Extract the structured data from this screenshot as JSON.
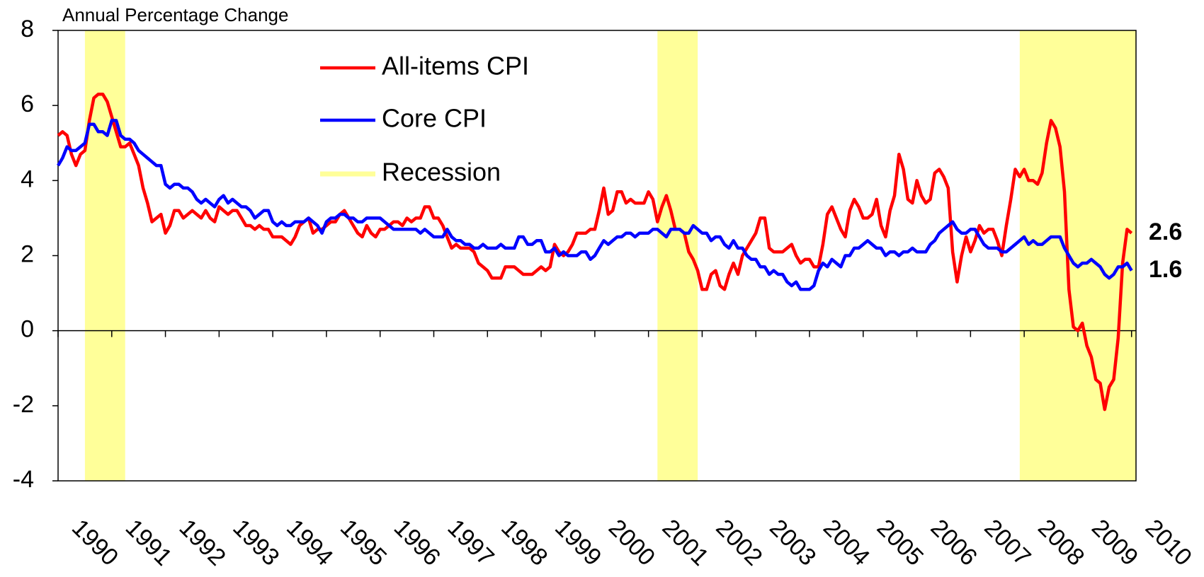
{
  "chart_data": {
    "type": "line",
    "title": "Annual Percentage Change",
    "x": [
      1990,
      1990.083,
      1990.167,
      1990.25,
      1990.333,
      1990.417,
      1990.5,
      1990.583,
      1990.667,
      1990.75,
      1990.833,
      1990.917,
      1991,
      1991.083,
      1991.167,
      1991.25,
      1991.333,
      1991.417,
      1991.5,
      1991.583,
      1991.667,
      1991.75,
      1991.833,
      1991.917,
      1992,
      1992.083,
      1992.167,
      1992.25,
      1992.333,
      1992.417,
      1992.5,
      1992.583,
      1992.667,
      1992.75,
      1992.833,
      1992.917,
      1993,
      1993.083,
      1993.167,
      1993.25,
      1993.333,
      1993.417,
      1993.5,
      1993.583,
      1993.667,
      1993.75,
      1993.833,
      1993.917,
      1994,
      1994.083,
      1994.167,
      1994.25,
      1994.333,
      1994.417,
      1994.5,
      1994.583,
      1994.667,
      1994.75,
      1994.833,
      1994.917,
      1995,
      1995.083,
      1995.167,
      1995.25,
      1995.333,
      1995.417,
      1995.5,
      1995.583,
      1995.667,
      1995.75,
      1995.833,
      1995.917,
      1996,
      1996.083,
      1996.167,
      1996.25,
      1996.333,
      1996.417,
      1996.5,
      1996.583,
      1996.667,
      1996.75,
      1996.833,
      1996.917,
      1997,
      1997.083,
      1997.167,
      1997.25,
      1997.333,
      1997.417,
      1997.5,
      1997.583,
      1997.667,
      1997.75,
      1997.833,
      1997.917,
      1998,
      1998.083,
      1998.167,
      1998.25,
      1998.333,
      1998.417,
      1998.5,
      1998.583,
      1998.667,
      1998.75,
      1998.833,
      1998.917,
      1999,
      1999.083,
      1999.167,
      1999.25,
      1999.333,
      1999.417,
      1999.5,
      1999.583,
      1999.667,
      1999.75,
      1999.833,
      1999.917,
      2000,
      2000.083,
      2000.167,
      2000.25,
      2000.333,
      2000.417,
      2000.5,
      2000.583,
      2000.667,
      2000.75,
      2000.833,
      2000.917,
      2001,
      2001.083,
      2001.167,
      2001.25,
      2001.333,
      2001.417,
      2001.5,
      2001.583,
      2001.667,
      2001.75,
      2001.833,
      2001.917,
      2002,
      2002.083,
      2002.167,
      2002.25,
      2002.333,
      2002.417,
      2002.5,
      2002.583,
      2002.667,
      2002.75,
      2002.833,
      2002.917,
      2003,
      2003.083,
      2003.167,
      2003.25,
      2003.333,
      2003.417,
      2003.5,
      2003.583,
      2003.667,
      2003.75,
      2003.833,
      2003.917,
      2004,
      2004.083,
      2004.167,
      2004.25,
      2004.333,
      2004.417,
      2004.5,
      2004.583,
      2004.667,
      2004.75,
      2004.833,
      2004.917,
      2005,
      2005.083,
      2005.167,
      2005.25,
      2005.333,
      2005.417,
      2005.5,
      2005.583,
      2005.667,
      2005.75,
      2005.833,
      2005.917,
      2006,
      2006.083,
      2006.167,
      2006.25,
      2006.333,
      2006.417,
      2006.5,
      2006.583,
      2006.667,
      2006.75,
      2006.833,
      2006.917,
      2007,
      2007.083,
      2007.167,
      2007.25,
      2007.333,
      2007.417,
      2007.5,
      2007.583,
      2007.667,
      2007.75,
      2007.833,
      2007.917,
      2008,
      2008.083,
      2008.167,
      2008.25,
      2008.333,
      2008.417,
      2008.5,
      2008.583,
      2008.667,
      2008.75,
      2008.833,
      2008.917,
      2009,
      2009.083,
      2009.167,
      2009.25,
      2009.333,
      2009.417,
      2009.5,
      2009.583,
      2009.667,
      2009.75,
      2009.833,
      2009.917,
      2010
    ],
    "series": [
      {
        "name": "All-items CPI",
        "color": "#ff0000",
        "values": [
          5.2,
          5.3,
          5.2,
          4.7,
          4.4,
          4.7,
          4.8,
          5.6,
          6.2,
          6.3,
          6.3,
          6.1,
          5.7,
          5.3,
          4.9,
          4.9,
          5.0,
          4.7,
          4.4,
          3.8,
          3.4,
          2.9,
          3.0,
          3.1,
          2.6,
          2.8,
          3.2,
          3.2,
          3.0,
          3.1,
          3.2,
          3.1,
          3.0,
          3.2,
          3.0,
          2.9,
          3.3,
          3.2,
          3.1,
          3.2,
          3.2,
          3.0,
          2.8,
          2.8,
          2.7,
          2.8,
          2.7,
          2.7,
          2.5,
          2.5,
          2.5,
          2.4,
          2.3,
          2.5,
          2.8,
          2.9,
          3.0,
          2.6,
          2.7,
          2.7,
          2.8,
          2.9,
          2.9,
          3.1,
          3.2,
          3.0,
          2.8,
          2.6,
          2.5,
          2.8,
          2.6,
          2.5,
          2.7,
          2.7,
          2.8,
          2.9,
          2.9,
          2.8,
          3.0,
          2.9,
          3.0,
          3.0,
          3.3,
          3.3,
          3.0,
          3.0,
          2.8,
          2.5,
          2.2,
          2.3,
          2.2,
          2.2,
          2.2,
          2.1,
          1.8,
          1.7,
          1.6,
          1.4,
          1.4,
          1.4,
          1.7,
          1.7,
          1.7,
          1.6,
          1.5,
          1.5,
          1.5,
          1.6,
          1.7,
          1.6,
          1.7,
          2.3,
          2.1,
          2.0,
          2.1,
          2.3,
          2.6,
          2.6,
          2.6,
          2.7,
          2.7,
          3.2,
          3.8,
          3.1,
          3.2,
          3.7,
          3.7,
          3.4,
          3.5,
          3.4,
          3.4,
          3.4,
          3.7,
          3.5,
          2.9,
          3.3,
          3.6,
          3.2,
          2.7,
          2.7,
          2.6,
          2.1,
          1.9,
          1.6,
          1.1,
          1.1,
          1.5,
          1.6,
          1.2,
          1.1,
          1.5,
          1.8,
          1.5,
          2.0,
          2.2,
          2.4,
          2.6,
          3.0,
          3.0,
          2.2,
          2.1,
          2.1,
          2.1,
          2.2,
          2.3,
          2.0,
          1.8,
          1.9,
          1.9,
          1.7,
          1.7,
          2.3,
          3.1,
          3.3,
          3.0,
          2.7,
          2.5,
          3.2,
          3.5,
          3.3,
          3.0,
          3.0,
          3.1,
          3.5,
          2.8,
          2.5,
          3.2,
          3.6,
          4.7,
          4.3,
          3.5,
          3.4,
          4.0,
          3.6,
          3.4,
          3.5,
          4.2,
          4.3,
          4.1,
          3.8,
          2.1,
          1.3,
          2.0,
          2.5,
          2.1,
          2.4,
          2.8,
          2.6,
          2.7,
          2.7,
          2.4,
          2.0,
          2.8,
          3.5,
          4.3,
          4.1,
          4.3,
          4.0,
          4.0,
          3.9,
          4.2,
          5.0,
          5.6,
          5.4,
          4.9,
          3.7,
          1.1,
          0.1,
          0.0,
          0.2,
          -0.4,
          -0.7,
          -1.3,
          -1.4,
          -2.1,
          -1.5,
          -1.3,
          -0.2,
          1.8,
          2.7,
          2.6
        ]
      },
      {
        "name": "Core CPI",
        "color": "#0000ff",
        "values": [
          4.4,
          4.6,
          4.9,
          4.8,
          4.8,
          4.9,
          5.0,
          5.5,
          5.5,
          5.3,
          5.3,
          5.2,
          5.6,
          5.6,
          5.2,
          5.1,
          5.1,
          5.0,
          4.8,
          4.7,
          4.6,
          4.5,
          4.4,
          4.4,
          3.9,
          3.8,
          3.9,
          3.9,
          3.8,
          3.8,
          3.7,
          3.5,
          3.4,
          3.5,
          3.4,
          3.3,
          3.5,
          3.6,
          3.4,
          3.5,
          3.4,
          3.3,
          3.3,
          3.2,
          3.0,
          3.1,
          3.2,
          3.2,
          2.9,
          2.8,
          2.9,
          2.8,
          2.8,
          2.9,
          2.9,
          2.9,
          3.0,
          2.9,
          2.8,
          2.6,
          2.9,
          3.0,
          3.0,
          3.1,
          3.1,
          3.0,
          3.0,
          2.9,
          2.9,
          3.0,
          3.0,
          3.0,
          3.0,
          2.9,
          2.8,
          2.7,
          2.7,
          2.7,
          2.7,
          2.7,
          2.7,
          2.6,
          2.7,
          2.6,
          2.5,
          2.5,
          2.5,
          2.7,
          2.5,
          2.4,
          2.4,
          2.3,
          2.3,
          2.2,
          2.2,
          2.3,
          2.2,
          2.2,
          2.2,
          2.3,
          2.2,
          2.2,
          2.2,
          2.5,
          2.5,
          2.3,
          2.3,
          2.4,
          2.4,
          2.1,
          2.1,
          2.2,
          2.0,
          2.1,
          2.0,
          2.0,
          2.0,
          2.1,
          2.1,
          1.9,
          2.0,
          2.2,
          2.4,
          2.3,
          2.4,
          2.5,
          2.5,
          2.6,
          2.6,
          2.5,
          2.6,
          2.6,
          2.6,
          2.7,
          2.7,
          2.6,
          2.5,
          2.7,
          2.7,
          2.7,
          2.6,
          2.6,
          2.8,
          2.7,
          2.6,
          2.6,
          2.4,
          2.5,
          2.5,
          2.3,
          2.2,
          2.4,
          2.2,
          2.2,
          2.0,
          1.9,
          1.9,
          1.7,
          1.7,
          1.5,
          1.6,
          1.5,
          1.5,
          1.3,
          1.2,
          1.3,
          1.1,
          1.1,
          1.1,
          1.2,
          1.6,
          1.8,
          1.7,
          1.9,
          1.8,
          1.7,
          2.0,
          2.0,
          2.2,
          2.2,
          2.3,
          2.4,
          2.3,
          2.2,
          2.2,
          2.0,
          2.1,
          2.1,
          2.0,
          2.1,
          2.1,
          2.2,
          2.1,
          2.1,
          2.1,
          2.3,
          2.4,
          2.6,
          2.7,
          2.8,
          2.9,
          2.7,
          2.6,
          2.6,
          2.7,
          2.7,
          2.5,
          2.3,
          2.2,
          2.2,
          2.2,
          2.1,
          2.1,
          2.2,
          2.3,
          2.4,
          2.5,
          2.3,
          2.4,
          2.3,
          2.3,
          2.4,
          2.5,
          2.5,
          2.5,
          2.2,
          2.0,
          1.8,
          1.7,
          1.8,
          1.8,
          1.9,
          1.8,
          1.7,
          1.5,
          1.4,
          1.5,
          1.7,
          1.7,
          1.8,
          1.6
        ]
      }
    ],
    "recession": {
      "name": "Recession",
      "color": "#ffff99",
      "periods": [
        [
          1990.5,
          1991.25
        ],
        [
          2001.167,
          2001.917
        ],
        [
          2007.917,
          2010.083
        ]
      ]
    },
    "xlim": [
      1990,
      2010.083
    ],
    "xticks": [
      1990,
      1991,
      1992,
      1993,
      1994,
      1995,
      1996,
      1997,
      1998,
      1999,
      2000,
      2001,
      2002,
      2003,
      2004,
      2005,
      2006,
      2007,
      2008,
      2009,
      2010
    ],
    "ylim": [
      -4,
      8
    ],
    "yticks": [
      -4,
      -2,
      0,
      2,
      4,
      6,
      8
    ],
    "grid": false,
    "legend": "top"
  }
}
